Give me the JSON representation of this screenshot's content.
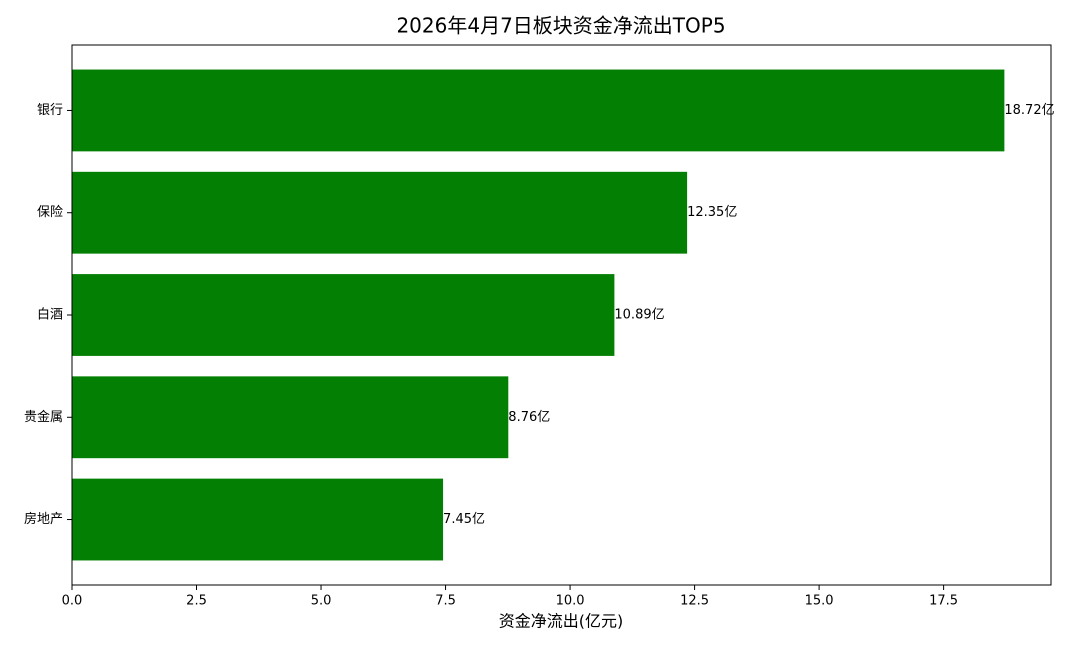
{
  "chart_data": {
    "type": "barh",
    "title": "2026年4月7日板块资金净流出TOP5",
    "xlabel": "资金净流出(亿元)",
    "categories": [
      "银行",
      "保险",
      "白酒",
      "贵金属",
      "房地产"
    ],
    "values": [
      18.72,
      12.35,
      10.89,
      8.76,
      7.45
    ],
    "value_labels": [
      "18.72亿",
      "12.35亿",
      "10.89亿",
      "8.76亿",
      "7.45亿"
    ],
    "color": "#037f03",
    "xlim": [
      0,
      19.656
    ],
    "xticks": [
      {
        "value": 0,
        "label": "0.0"
      },
      2.5,
      {
        "value": 5,
        "label": "5.0"
      },
      7.5,
      {
        "value": 10,
        "label": "10.0"
      },
      12.5,
      {
        "value": 15,
        "label": "15.0"
      },
      17.5
    ]
  }
}
